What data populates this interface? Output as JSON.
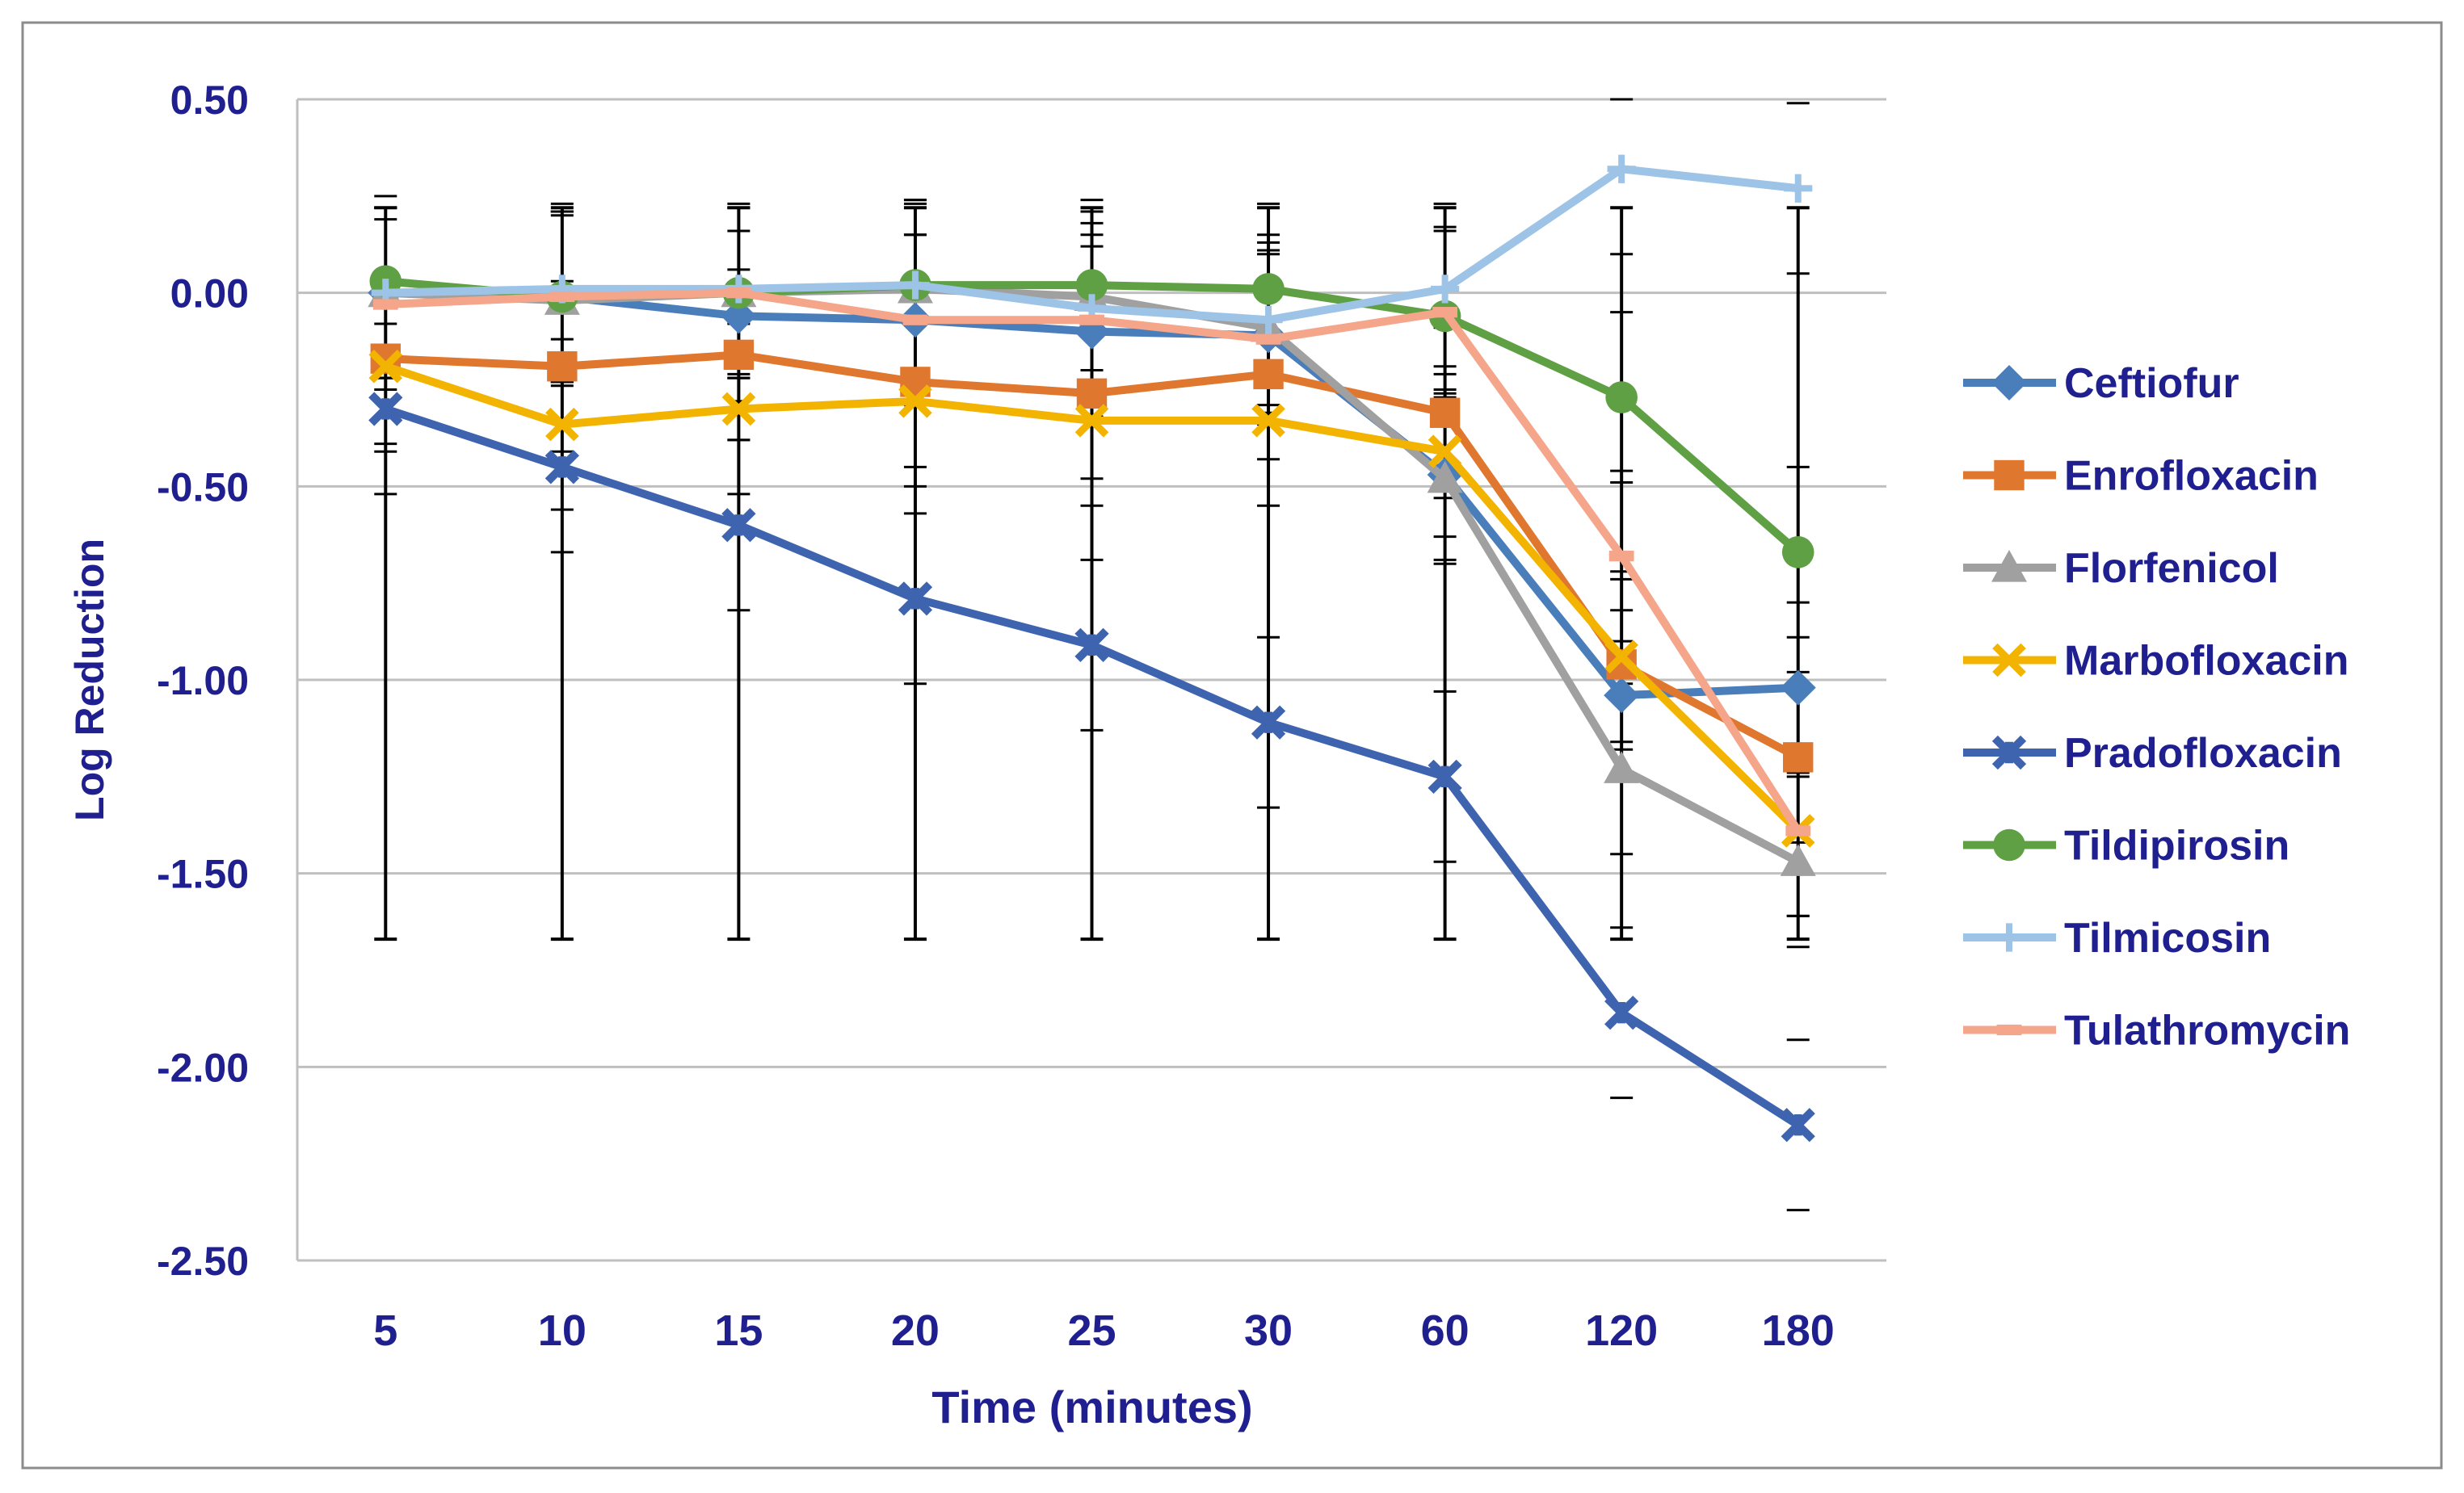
{
  "chart_data": {
    "type": "line",
    "title": "",
    "xlabel": "Time (minutes)",
    "ylabel": "Log Reduction",
    "categories": [
      "5",
      "10",
      "15",
      "20",
      "25",
      "30",
      "60",
      "120",
      "180"
    ],
    "ylim": [
      -2.5,
      0.5
    ],
    "yticks": [
      "0.50",
      "0.00",
      "-0.50",
      "-1.00",
      "-1.50",
      "-2.00",
      "-2.50"
    ],
    "grid": "horizontal",
    "legend_position": "right",
    "error_bars": {
      "color": "#000000",
      "series_spread": [
        0.22,
        -1.67
      ]
    },
    "series": [
      {
        "name": "Ceftiofur",
        "marker": "diamond",
        "color": "#4a7ebb",
        "values": [
          0.0,
          -0.01,
          -0.06,
          -0.07,
          -0.1,
          -0.11,
          -0.47,
          -1.04,
          -1.02
        ]
      },
      {
        "name": "Enrofloxacin",
        "marker": "square",
        "color": "#e0772e",
        "values": [
          -0.17,
          -0.19,
          -0.16,
          -0.23,
          -0.26,
          -0.21,
          -0.31,
          -0.96,
          -1.2
        ]
      },
      {
        "name": "Florfenicol",
        "marker": "triangle",
        "color": "#a0a0a0",
        "values": [
          0.0,
          -0.02,
          0.0,
          0.01,
          -0.01,
          -0.09,
          -0.48,
          -1.23,
          -1.47
        ]
      },
      {
        "name": "Marbofloxacin",
        "marker": "x",
        "color": "#f2b400",
        "values": [
          -0.19,
          -0.34,
          -0.3,
          -0.28,
          -0.33,
          -0.33,
          -0.41,
          -0.94,
          -1.39
        ]
      },
      {
        "name": "Pradofloxacin",
        "marker": "star",
        "color": "#3e64b0",
        "values": [
          -0.3,
          -0.45,
          -0.6,
          -0.79,
          -0.91,
          -1.11,
          -1.25,
          -1.86,
          -2.15
        ]
      },
      {
        "name": "Tildipirosin",
        "marker": "circle",
        "color": "#5fa044",
        "values": [
          0.03,
          -0.01,
          0.0,
          0.02,
          0.02,
          0.01,
          -0.06,
          -0.27,
          -0.67
        ]
      },
      {
        "name": "Tilmicosin",
        "marker": "plus",
        "color": "#9dc3e6",
        "values": [
          0.0,
          0.01,
          0.01,
          0.02,
          -0.04,
          -0.07,
          0.01,
          0.32,
          0.27
        ]
      },
      {
        "name": "Tulathromycin",
        "marker": "dash",
        "color": "#f4a58a",
        "values": [
          -0.03,
          -0.01,
          0.0,
          -0.07,
          -0.07,
          -0.12,
          -0.05,
          -0.68,
          -1.39
        ]
      }
    ]
  }
}
